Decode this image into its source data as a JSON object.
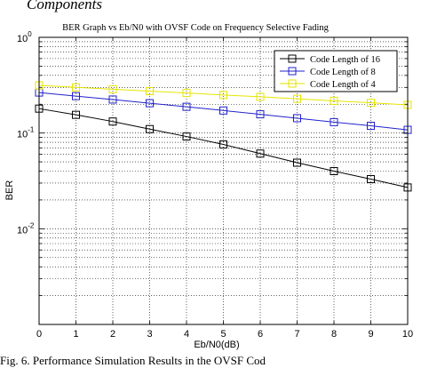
{
  "header_fragment": "Components",
  "caption_fragment": "Fig. 6.   Performance Simulation Results in the OVSF Cod",
  "chart_data": {
    "type": "line",
    "title": "BER Graph vs Eb/N0 with OVSF Code on Frequency Selective Fading",
    "xlabel": "Eb/N0(dB)",
    "ylabel": "BER",
    "yscale": "log",
    "xlim": [
      0,
      10
    ],
    "ylim": [
      0.001,
      1
    ],
    "xticks": [
      "0",
      "1",
      "2",
      "3",
      "4",
      "5",
      "6",
      "7",
      "8",
      "9",
      "10"
    ],
    "yticks": [
      {
        "value": 1,
        "mantissa": "10",
        "exp": "0"
      },
      {
        "value": 0.1,
        "mantissa": "10",
        "exp": "-1"
      },
      {
        "value": 0.01,
        "mantissa": "10",
        "exp": "-2"
      }
    ],
    "grid": true,
    "legend_position": "top-right",
    "x": [
      0,
      1,
      2,
      3,
      4,
      5,
      6,
      7,
      8,
      9,
      10
    ],
    "series": [
      {
        "name": "Code Length of 16",
        "color": "#000000",
        "values": [
          0.18,
          0.155,
          0.132,
          0.11,
          0.092,
          0.076,
          0.061,
          0.049,
          0.04,
          0.033,
          0.027
        ]
      },
      {
        "name": "Code Length of 8",
        "color": "#2222cc",
        "values": [
          0.265,
          0.243,
          0.224,
          0.205,
          0.188,
          0.172,
          0.157,
          0.143,
          0.13,
          0.119,
          0.108
        ]
      },
      {
        "name": "Code Length of 4",
        "color": "#e6e600",
        "values": [
          0.315,
          0.3,
          0.287,
          0.274,
          0.262,
          0.25,
          0.239,
          0.228,
          0.217,
          0.207,
          0.197
        ]
      }
    ]
  }
}
